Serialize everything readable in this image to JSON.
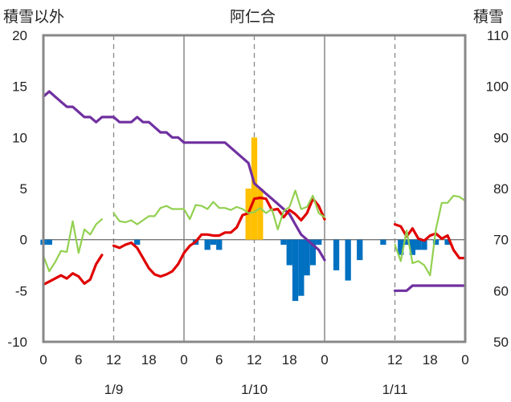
{
  "chart_data": {
    "type": "combo",
    "title": "阿仁合",
    "left_axis_label": "積雪以外",
    "right_axis_label": "積雪",
    "left_ylim": [
      -10,
      20
    ],
    "right_ylim": [
      50,
      110
    ],
    "left_ticks": [
      "20",
      "15",
      "10",
      "5",
      "0",
      "-5",
      "-10"
    ],
    "right_ticks": [
      "110",
      "100",
      "90",
      "80",
      "70",
      "60",
      "50"
    ],
    "x_tick_labels": [
      "0",
      "6",
      "12",
      "18",
      "0",
      "6",
      "12",
      "18",
      "0",
      "12",
      "18",
      "0"
    ],
    "date_labels": [
      "1/9",
      "1/10",
      "1/11"
    ],
    "grid": "vertical dashed every 12h, solid at day boundaries, horizontal solid at 0",
    "series": [
      {
        "color": "#7030A0",
        "axis": "right",
        "kind": "line",
        "points": [
          [
            0,
            98
          ],
          [
            1,
            99
          ],
          [
            2,
            98
          ],
          [
            3,
            97
          ],
          [
            4,
            96
          ],
          [
            5,
            96
          ],
          [
            6,
            95
          ],
          [
            7,
            94
          ],
          [
            8,
            94
          ],
          [
            9,
            93
          ],
          [
            10,
            94
          ],
          [
            12,
            94
          ],
          [
            13,
            93
          ],
          [
            14,
            93
          ],
          [
            15,
            93
          ],
          [
            16,
            94
          ],
          [
            17,
            93
          ],
          [
            18,
            93
          ],
          [
            19,
            92
          ],
          [
            20,
            91
          ],
          [
            21,
            91
          ],
          [
            22,
            90
          ],
          [
            23,
            90
          ],
          [
            24,
            89
          ],
          [
            25,
            89
          ],
          [
            26,
            89
          ],
          [
            27,
            89
          ],
          [
            28,
            89
          ],
          [
            29,
            89
          ],
          [
            30,
            89
          ],
          [
            31,
            89
          ],
          [
            32,
            88
          ],
          [
            33,
            87
          ],
          [
            34,
            86
          ],
          [
            35,
            85
          ],
          [
            36,
            81
          ],
          [
            37,
            80
          ],
          [
            38,
            79
          ],
          [
            39,
            78
          ],
          [
            40,
            77
          ],
          [
            41,
            76
          ],
          [
            42,
            75
          ],
          [
            43,
            73
          ],
          [
            44,
            71
          ],
          [
            45,
            70
          ],
          [
            46,
            69
          ],
          [
            47,
            68
          ],
          [
            48,
            66
          ]
        ],
        "points2": [
          [
            60,
            60
          ],
          [
            61,
            60
          ],
          [
            62,
            60
          ],
          [
            63,
            61
          ],
          [
            64,
            61
          ],
          [
            65,
            61
          ],
          [
            66,
            61
          ],
          [
            67,
            61
          ],
          [
            68,
            61
          ],
          [
            69,
            61
          ],
          [
            70,
            61
          ],
          [
            71,
            61
          ],
          [
            72,
            61
          ]
        ]
      },
      {
        "color": "#E00000",
        "axis": "left",
        "kind": "line",
        "points": [
          [
            0,
            -4.4
          ],
          [
            1,
            -4.1
          ],
          [
            2,
            -3.8
          ],
          [
            3,
            -3.5
          ],
          [
            4,
            -3.8
          ],
          [
            5,
            -3.3
          ],
          [
            6,
            -3.6
          ],
          [
            7,
            -4.3
          ],
          [
            8,
            -3.9
          ],
          [
            9,
            -2.4
          ],
          [
            10,
            -1.5
          ]
        ],
        "points2": [
          [
            12,
            -0.6
          ],
          [
            13,
            -0.8
          ],
          [
            14,
            -0.5
          ],
          [
            15,
            -0.3
          ],
          [
            16,
            -0.8
          ],
          [
            17,
            -1.8
          ],
          [
            18,
            -2.8
          ],
          [
            19,
            -3.4
          ],
          [
            20,
            -3.6
          ],
          [
            21,
            -3.4
          ],
          [
            22,
            -3.1
          ],
          [
            23,
            -2.4
          ],
          [
            24,
            -1.3
          ],
          [
            25,
            -0.6
          ],
          [
            26,
            -0.2
          ],
          [
            27,
            0.5
          ],
          [
            28,
            0.5
          ],
          [
            29,
            0.4
          ],
          [
            30,
            0.4
          ],
          [
            31,
            0.7
          ],
          [
            32,
            0.7
          ],
          [
            33,
            1.2
          ],
          [
            34,
            2.4
          ],
          [
            35,
            2.6
          ],
          [
            36,
            4.0
          ],
          [
            37,
            4.1
          ],
          [
            38,
            4.0
          ],
          [
            39,
            2.9
          ],
          [
            40,
            3.0
          ],
          [
            41,
            2.2
          ],
          [
            42,
            2.9
          ],
          [
            43,
            2.5
          ],
          [
            44,
            1.9
          ],
          [
            45,
            2.6
          ],
          [
            46,
            4.0
          ],
          [
            47,
            3.3
          ],
          [
            48,
            2.0
          ]
        ],
        "points3": [
          [
            60,
            1.5
          ],
          [
            61,
            1.3
          ],
          [
            62,
            0.3
          ],
          [
            63,
            1.1
          ],
          [
            64,
            0.1
          ],
          [
            65,
            -0.1
          ],
          [
            66,
            0.4
          ],
          [
            67,
            0.6
          ],
          [
            68,
            0.1
          ],
          [
            69,
            0.4
          ],
          [
            70,
            -1.0
          ],
          [
            71,
            -1.8
          ],
          [
            72,
            -1.8
          ]
        ]
      },
      {
        "color": "#92D050",
        "axis": "left",
        "kind": "line",
        "points": [
          [
            0,
            -1.6
          ],
          [
            1,
            -3.1
          ],
          [
            2,
            -2.2
          ],
          [
            3,
            -1.1
          ],
          [
            4,
            -1.2
          ],
          [
            5,
            1.8
          ],
          [
            6,
            -1.3
          ],
          [
            7,
            1.0
          ],
          [
            8,
            0.5
          ],
          [
            9,
            1.5
          ],
          [
            10,
            2.0
          ]
        ],
        "points2": [
          [
            12,
            2.6
          ],
          [
            13,
            1.8
          ],
          [
            14,
            1.7
          ],
          [
            15,
            1.9
          ],
          [
            16,
            1.5
          ],
          [
            17,
            1.9
          ],
          [
            18,
            2.3
          ],
          [
            19,
            2.3
          ],
          [
            20,
            3.1
          ],
          [
            21,
            3.3
          ],
          [
            22,
            3.0
          ],
          [
            23,
            3.0
          ],
          [
            24,
            3.0
          ],
          [
            25,
            2.0
          ],
          [
            26,
            3.4
          ],
          [
            27,
            3.3
          ],
          [
            28,
            3.0
          ],
          [
            29,
            3.7
          ],
          [
            30,
            3.1
          ],
          [
            31,
            3.1
          ],
          [
            32,
            2.9
          ],
          [
            33,
            3.2
          ],
          [
            34,
            3.0
          ],
          [
            35,
            2.6
          ],
          [
            36,
            2.7
          ],
          [
            37,
            3.1
          ],
          [
            38,
            2.6
          ],
          [
            39,
            3.0
          ],
          [
            40,
            1.0
          ],
          [
            41,
            2.8
          ],
          [
            42,
            3.2
          ],
          [
            43,
            4.8
          ],
          [
            44,
            3.0
          ],
          [
            45,
            3.2
          ],
          [
            46,
            4.3
          ],
          [
            47,
            2.6
          ],
          [
            48,
            2.2
          ]
        ],
        "points3": [
          [
            60,
            -0.5
          ],
          [
            61,
            -2.1
          ],
          [
            62,
            0.9
          ],
          [
            63,
            -2.3
          ],
          [
            64,
            -2.1
          ],
          [
            65,
            -2.5
          ],
          [
            66,
            -3.5
          ],
          [
            67,
            1.0
          ],
          [
            68,
            3.6
          ],
          [
            69,
            3.6
          ],
          [
            70,
            4.3
          ],
          [
            71,
            4.2
          ],
          [
            72,
            3.8
          ]
        ]
      },
      {
        "color": "#FFC000",
        "axis": "left",
        "kind": "bar",
        "bars": [
          [
            35,
            5.0
          ],
          [
            36,
            10.0
          ],
          [
            37,
            5.0
          ]
        ]
      },
      {
        "color": "#0070C0",
        "axis": "left",
        "kind": "bar",
        "bars": [
          [
            0,
            -0.5
          ],
          [
            1,
            -0.5
          ],
          [
            16,
            -0.5
          ],
          [
            26,
            -0.5
          ],
          [
            28,
            -1.0
          ],
          [
            29,
            -0.5
          ],
          [
            30,
            -1.0
          ],
          [
            41,
            -0.5
          ],
          [
            42,
            -2.5
          ],
          [
            43,
            -6.0
          ],
          [
            44,
            -5.5
          ],
          [
            45,
            -3.5
          ],
          [
            46,
            -2.5
          ],
          [
            47,
            -0.5
          ],
          [
            50,
            -3.0
          ],
          [
            52,
            -4.0
          ],
          [
            54,
            -2.0
          ],
          [
            58,
            -0.5
          ],
          [
            61,
            -1.5
          ],
          [
            62,
            -0.5
          ],
          [
            63,
            -1.5
          ],
          [
            64,
            -1.0
          ],
          [
            65,
            -1.0
          ],
          [
            67,
            -0.5
          ],
          [
            69,
            -0.5
          ]
        ]
      }
    ]
  }
}
